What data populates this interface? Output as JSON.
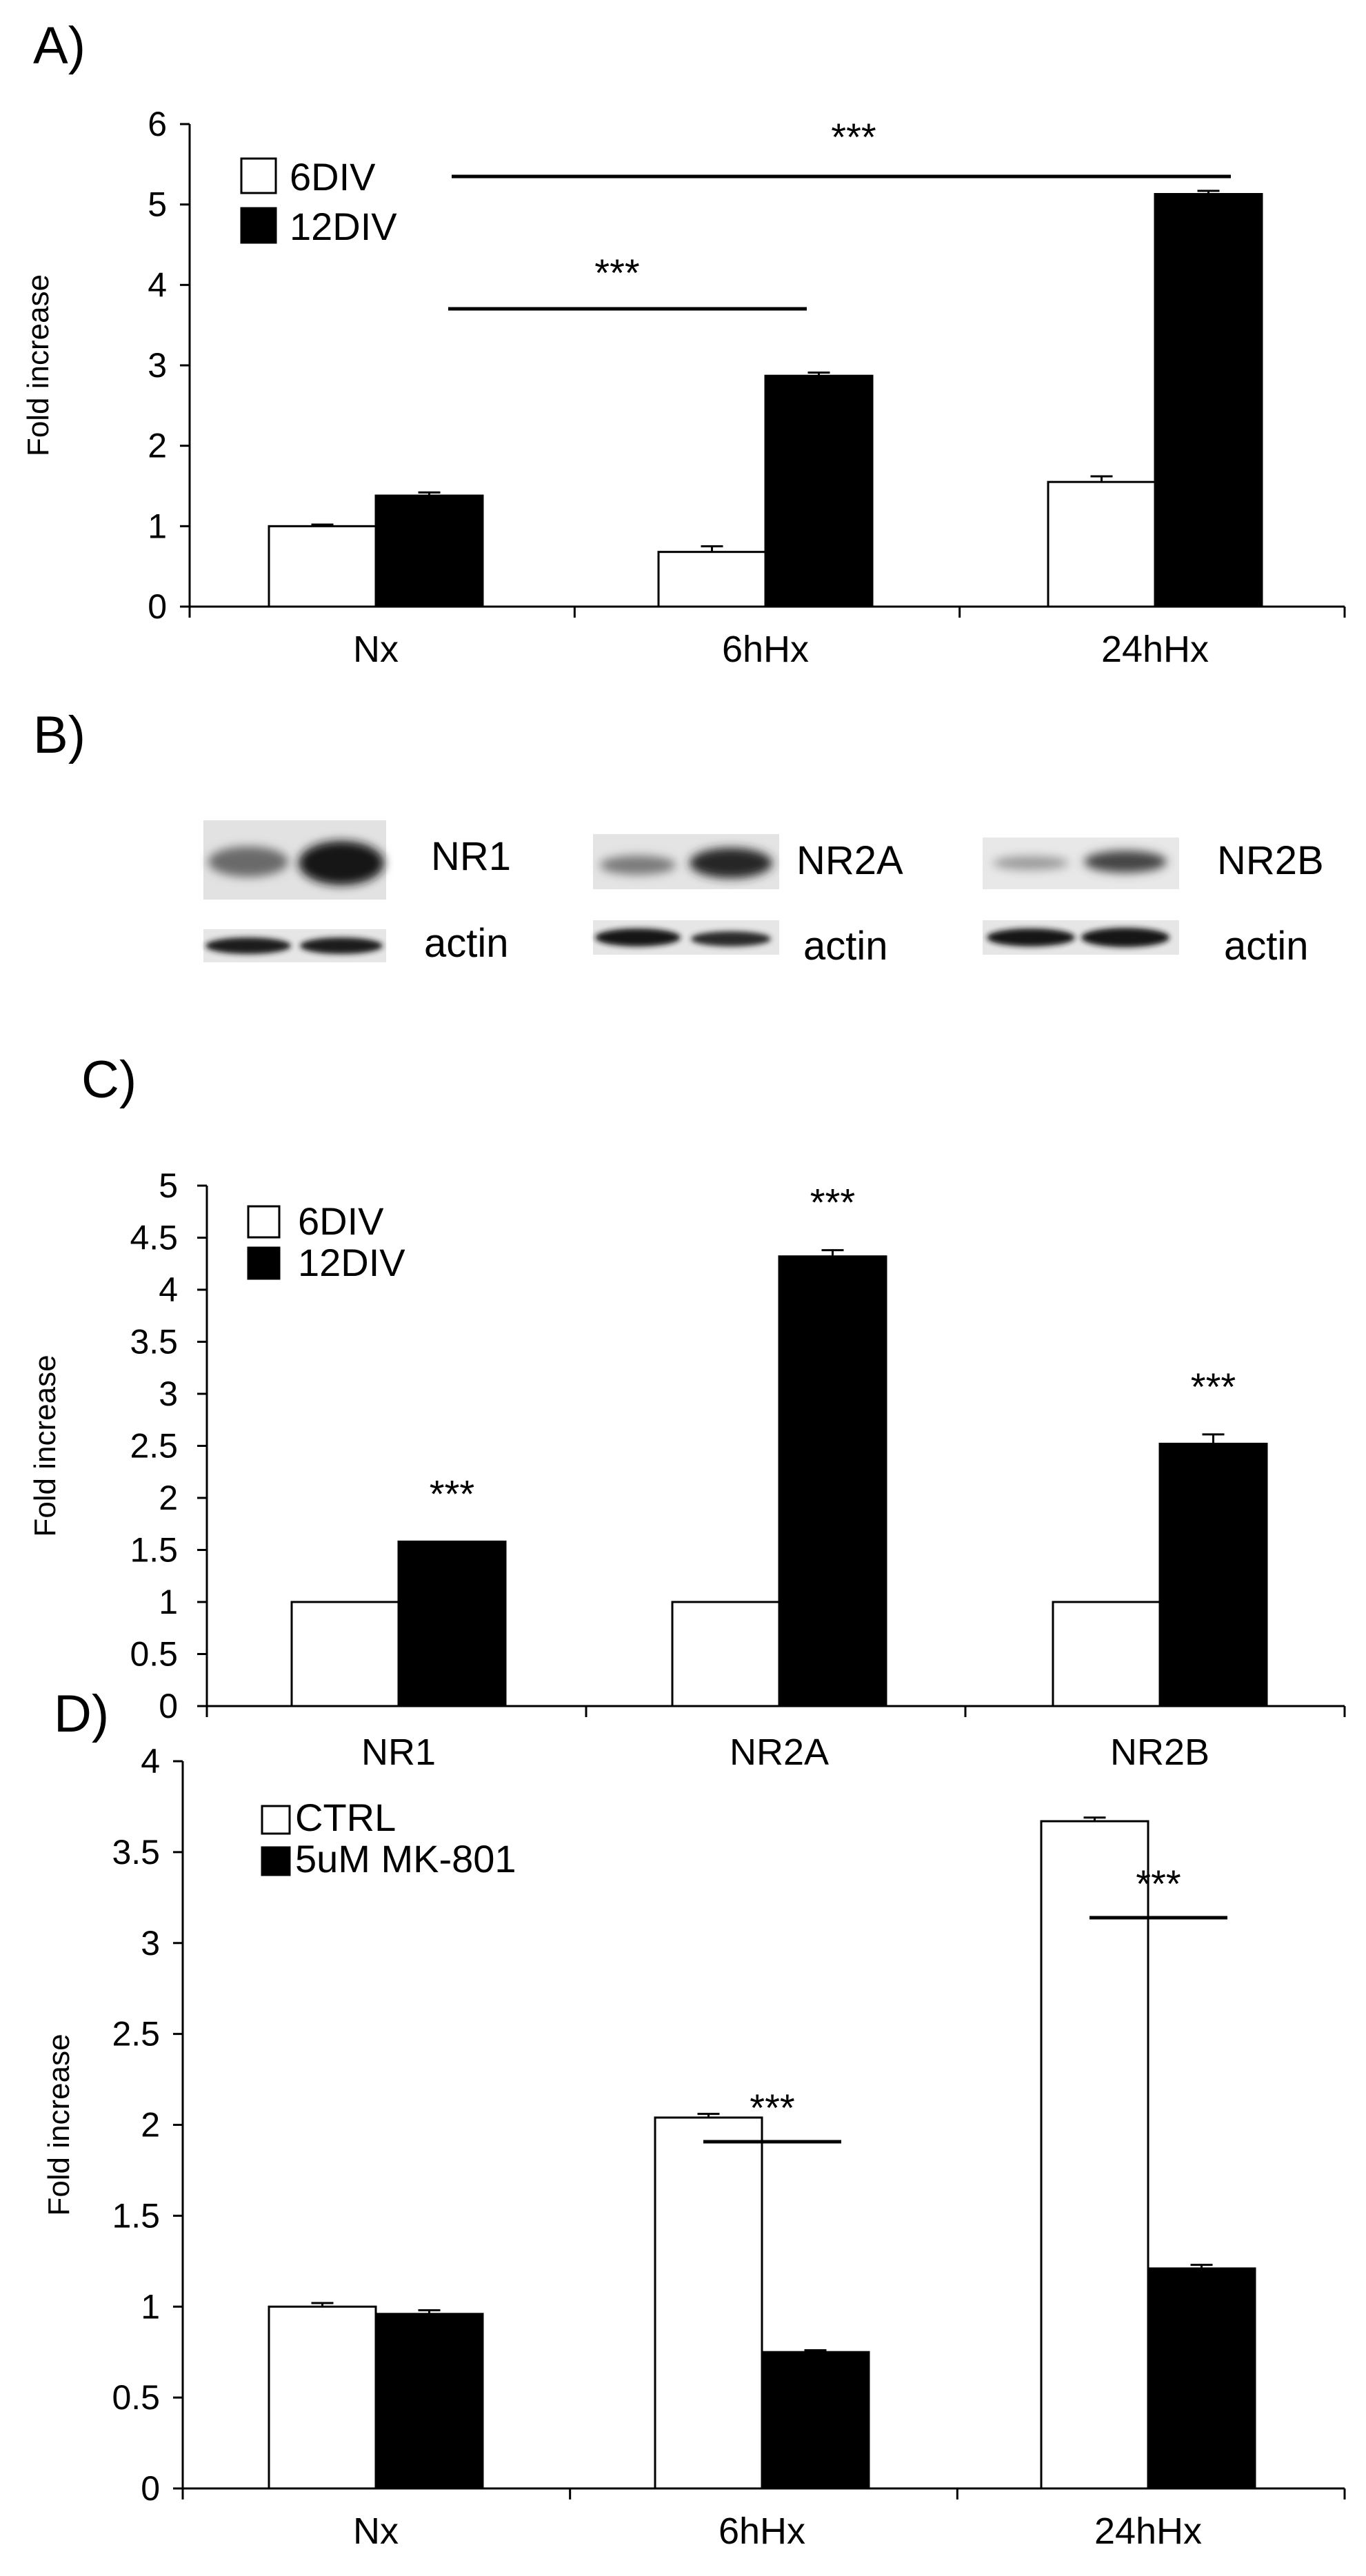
{
  "panels": {
    "a": {
      "letter": "A)",
      "chart_data": {
        "type": "bar",
        "categories": [
          "Nx",
          "6hHx",
          "24hHx"
        ],
        "series": [
          {
            "name": "6DIV",
            "values": [
              1.0,
              0.68,
              1.55
            ],
            "errors": [
              0.02,
              0.07,
              0.07
            ],
            "color": "#ffffff"
          },
          {
            "name": "12DIV",
            "values": [
              1.38,
              2.87,
              5.13
            ],
            "errors": [
              0.04,
              0.04,
              0.04
            ],
            "color": "#000000"
          }
        ],
        "ylabel": "Fold increase",
        "ylim": [
          0,
          6
        ],
        "yticks": [
          0,
          1,
          2,
          3,
          4,
          5,
          6
        ],
        "legend": "top-left",
        "annotations": [
          {
            "text": "***",
            "from": "Nx",
            "to": "6hHx"
          },
          {
            "text": "***",
            "from": "Nx",
            "to": "24hHx"
          }
        ]
      }
    },
    "b": {
      "letter": "B)",
      "blots": [
        {
          "target": "NR1",
          "control": "actin"
        },
        {
          "target": "NR2A",
          "control": "actin"
        },
        {
          "target": "NR2B",
          "control": "actin"
        }
      ]
    },
    "c": {
      "letter": "C)",
      "chart_data": {
        "type": "bar",
        "categories": [
          "NR1",
          "NR2A",
          "NR2B"
        ],
        "series": [
          {
            "name": "6DIV",
            "values": [
              1,
              1,
              1
            ],
            "errors": [
              0,
              0,
              0
            ],
            "color": "#ffffff"
          },
          {
            "name": "12DIV",
            "values": [
              1.58,
              4.32,
              2.52
            ],
            "errors": [
              0.0,
              0.06,
              0.09
            ],
            "color": "#000000"
          }
        ],
        "ylabel": "Fold increase",
        "ylim": [
          0,
          5
        ],
        "yticks": [
          "0",
          "0.5",
          "1",
          "1.5",
          "2",
          "2.5",
          "3",
          "3.5",
          "4",
          "4.5",
          "5"
        ],
        "legend": "top-left",
        "annotations": [
          {
            "text": "***",
            "at": "NR1"
          },
          {
            "text": "***",
            "at": "NR2A"
          },
          {
            "text": "***",
            "at": "NR2B"
          }
        ]
      }
    },
    "d": {
      "letter": "D)",
      "chart_data": {
        "type": "bar",
        "categories": [
          "Nx",
          "6hHx",
          "24hHx"
        ],
        "series": [
          {
            "name": "CTRL",
            "values": [
              1.0,
              2.04,
              3.67
            ],
            "errors": [
              0.02,
              0.02,
              0.02
            ],
            "color": "#ffffff"
          },
          {
            "name": "5uM MK-801",
            "values": [
              0.96,
              0.75,
              1.21
            ],
            "errors": [
              0.02,
              0.01,
              0.02
            ],
            "color": "#000000"
          }
        ],
        "ylabel": "Fold increase",
        "ylim": [
          0,
          4
        ],
        "yticks": [
          "0",
          "0.5",
          "1",
          "1.5",
          "2",
          "2.5",
          "3",
          "3.5",
          "4"
        ],
        "legend": "top-left",
        "annotations": [
          {
            "text": "***",
            "at": "6hHx"
          },
          {
            "text": "***",
            "at": "24hHx"
          }
        ]
      }
    }
  }
}
